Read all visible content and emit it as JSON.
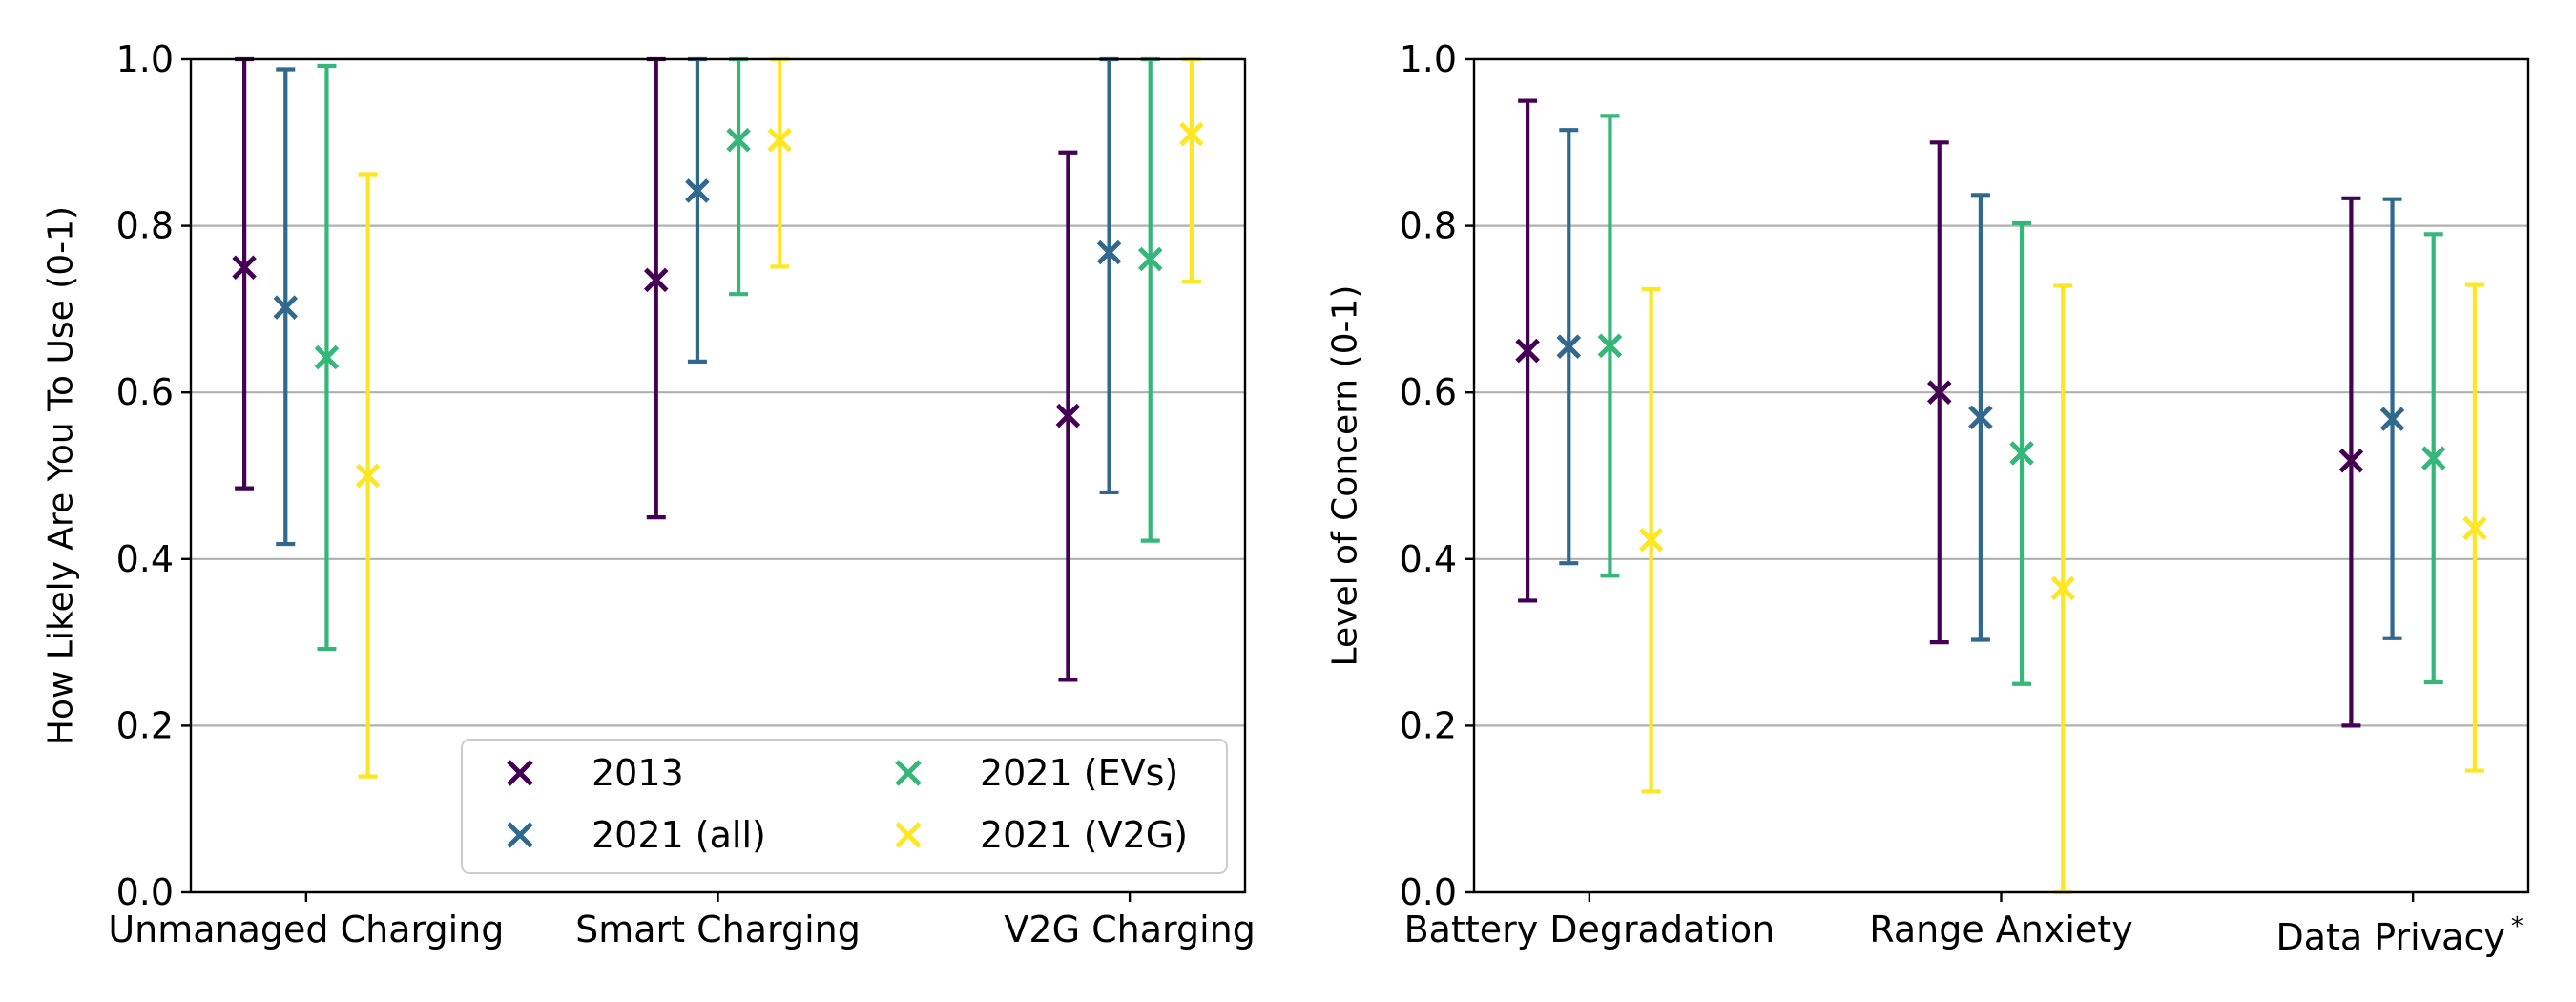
{
  "colors": {
    "2013": "#440154",
    "2021_all": "#31688e",
    "2021_evs": "#35b779",
    "2021_v2g": "#fde725"
  },
  "legend": {
    "placement": "lower-right",
    "columns": 2,
    "entries": [
      "2013",
      "2021 (all)",
      "2021 (EVs)",
      "2021 (V2G)"
    ]
  },
  "chart_data": [
    {
      "type": "scatter",
      "error_bars": true,
      "xlabel": "",
      "ylabel": "How Likely Are You To Use (0-1)",
      "ylim": [
        0,
        1
      ],
      "yticks": [
        "0.0",
        "0.2",
        "0.4",
        "0.6",
        "0.8",
        "1.0"
      ],
      "grid": "y",
      "categories": [
        "Unmanaged Charging",
        "Smart Charging",
        "V2G Charging"
      ],
      "series": [
        {
          "name": "2013",
          "color": "#440154",
          "values": [
            0.75,
            0.735,
            0.572
          ],
          "low": [
            0.485,
            0.45,
            0.255
          ],
          "high": [
            1.0,
            1.0,
            0.888
          ]
        },
        {
          "name": "2021 (all)",
          "color": "#31688e",
          "values": [
            0.702,
            0.842,
            0.768
          ],
          "low": [
            0.418,
            0.637,
            0.48
          ],
          "high": [
            0.988,
            1.0,
            1.0
          ]
        },
        {
          "name": "2021 (EVs)",
          "color": "#35b779",
          "values": [
            0.642,
            0.903,
            0.76
          ],
          "low": [
            0.292,
            0.718,
            0.422
          ],
          "high": [
            0.992,
            1.0,
            1.0
          ]
        },
        {
          "name": "2021 (V2G)",
          "color": "#fde725",
          "values": [
            0.5,
            0.903,
            0.91
          ],
          "low": [
            0.139,
            0.751,
            0.733
          ],
          "high": [
            0.862,
            1.0,
            1.0
          ]
        }
      ]
    },
    {
      "type": "scatter",
      "error_bars": true,
      "xlabel": "",
      "ylabel": "Level of Concern (0-1)",
      "ylim": [
        0,
        1
      ],
      "yticks": [
        "0.0",
        "0.2",
        "0.4",
        "0.6",
        "0.8",
        "1.0"
      ],
      "grid": "y",
      "categories": [
        "Battery Degradation",
        "Range Anxiety",
        "Data Privacy"
      ],
      "category_superscripts": [
        "",
        "",
        "*"
      ],
      "series": [
        {
          "name": "2013",
          "color": "#440154",
          "values": [
            0.65,
            0.6,
            0.518
          ],
          "low": [
            0.35,
            0.3,
            0.2
          ],
          "high": [
            0.95,
            0.9,
            0.833
          ]
        },
        {
          "name": "2021 (all)",
          "color": "#31688e",
          "values": [
            0.655,
            0.57,
            0.568
          ],
          "low": [
            0.395,
            0.303,
            0.305
          ],
          "high": [
            0.915,
            0.837,
            0.832
          ]
        },
        {
          "name": "2021 (EVs)",
          "color": "#35b779",
          "values": [
            0.656,
            0.527,
            0.521
          ],
          "low": [
            0.38,
            0.25,
            0.252
          ],
          "high": [
            0.932,
            0.803,
            0.79
          ]
        },
        {
          "name": "2021 (V2G)",
          "color": "#fde725",
          "values": [
            0.423,
            0.365,
            0.437
          ],
          "low": [
            0.121,
            0.0,
            0.146
          ],
          "high": [
            0.724,
            0.728,
            0.729
          ]
        }
      ]
    }
  ]
}
